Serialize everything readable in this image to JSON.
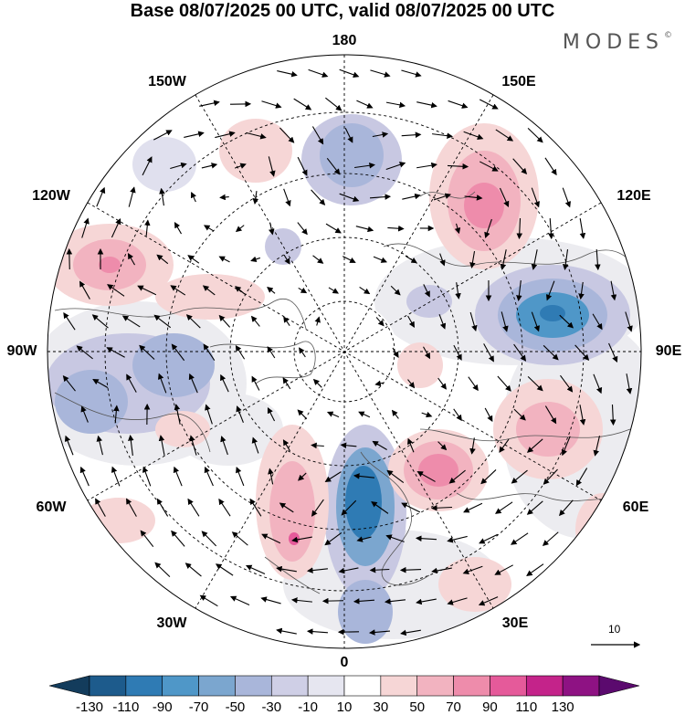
{
  "title": "Base 08/07/2025 00 UTC, valid 08/07/2025 00 UTC",
  "brand": "MODES",
  "brand_mark": "©",
  "lon_labels": {
    "l180": "180",
    "l150w": "150W",
    "l150e": "150E",
    "l120w": "120W",
    "l120e": "120E",
    "l90w": "90W",
    "l90e": "90E",
    "l60w": "60W",
    "l60e": "60E",
    "l30w": "30W",
    "l30e": "30E",
    "l0": "0"
  },
  "reference_vector": {
    "label": "10"
  },
  "colorbar": {
    "ticks": [
      "-130",
      "-110",
      "-90",
      "-70",
      "-50",
      "-30",
      "-10",
      "10",
      "30",
      "50",
      "70",
      "90",
      "110",
      "130"
    ],
    "colors": [
      "#133c5c",
      "#1d5b8c",
      "#2f7bb4",
      "#4f97c8",
      "#7ba6cf",
      "#a9b6da",
      "#cfcfe6",
      "#e6e6f0",
      "#ffffff",
      "#f6d6d6",
      "#f2b3c0",
      "#ee8cab",
      "#e55a9a",
      "#c4238a",
      "#8e1283",
      "#5b0a6e"
    ],
    "underflow": "#133c5c",
    "overflow": "#5b0a6e"
  }
}
